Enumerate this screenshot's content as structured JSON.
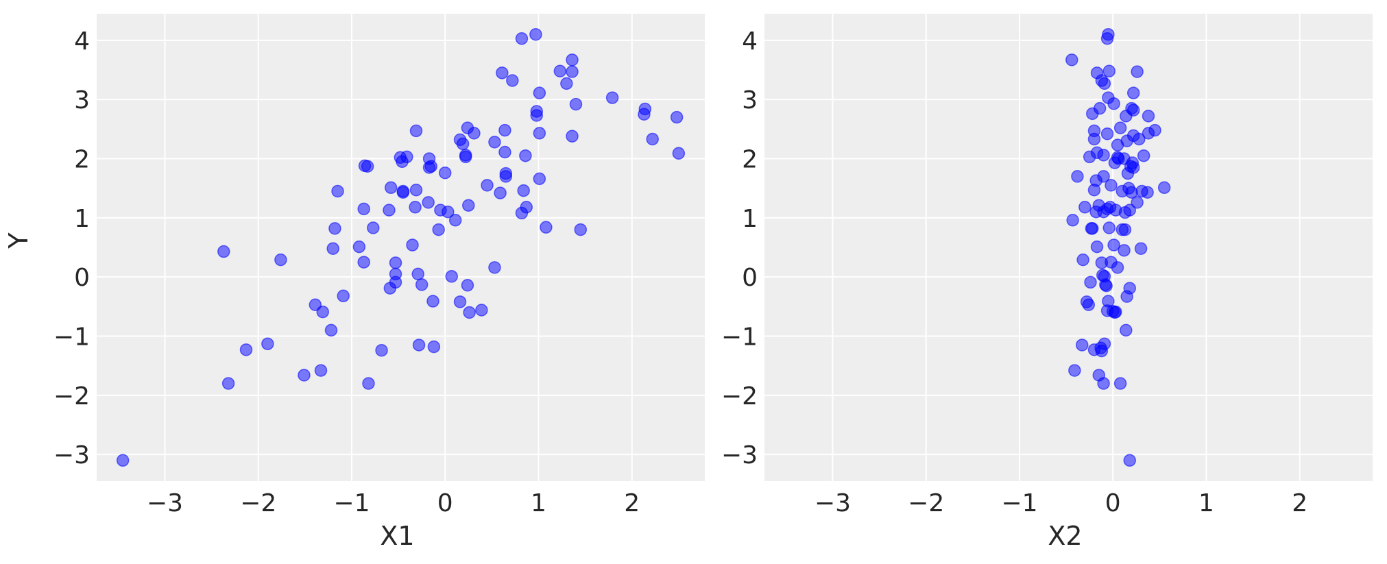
{
  "chart_data": [
    {
      "type": "scatter",
      "xlabel": "X1",
      "ylabel": "Y",
      "xlim": [
        -3.73,
        2.78
      ],
      "ylim": [
        -3.45,
        4.45
      ],
      "xticks": [
        -3,
        -2,
        -1,
        0,
        1,
        2
      ],
      "yticks": [
        -3,
        -2,
        -1,
        0,
        1,
        2,
        3,
        4
      ],
      "grid": true,
      "point_color": "#0000ff",
      "background": "#eeeeee",
      "points": [
        [
          -3.45,
          -3.1
        ],
        [
          -2.37,
          0.43
        ],
        [
          -2.32,
          -1.8
        ],
        [
          -2.13,
          -1.23
        ],
        [
          -1.9,
          -1.13
        ],
        [
          -1.76,
          0.29
        ],
        [
          -1.51,
          -1.66
        ],
        [
          -1.39,
          -0.47
        ],
        [
          -1.31,
          -0.59
        ],
        [
          -1.33,
          -1.58
        ],
        [
          -1.22,
          -0.9
        ],
        [
          -1.2,
          0.48
        ],
        [
          -1.18,
          0.82
        ],
        [
          -1.15,
          1.45
        ],
        [
          -1.09,
          -0.32
        ],
        [
          -0.92,
          0.51
        ],
        [
          -0.87,
          0.25
        ],
        [
          -0.87,
          1.15
        ],
        [
          -0.86,
          1.88
        ],
        [
          -0.83,
          1.87
        ],
        [
          -0.82,
          -1.8
        ],
        [
          -0.77,
          0.83
        ],
        [
          -0.68,
          -1.24
        ],
        [
          -0.6,
          1.13
        ],
        [
          -0.58,
          1.51
        ],
        [
          -0.59,
          -0.19
        ],
        [
          -0.53,
          0.24
        ],
        [
          -0.53,
          0.05
        ],
        [
          -0.53,
          -0.09
        ],
        [
          -0.48,
          2.02
        ],
        [
          -0.46,
          1.95
        ],
        [
          -0.45,
          1.45
        ],
        [
          -0.45,
          1.43
        ],
        [
          -0.41,
          2.03
        ],
        [
          -0.35,
          0.54
        ],
        [
          -0.32,
          1.18
        ],
        [
          -0.31,
          1.47
        ],
        [
          -0.31,
          2.47
        ],
        [
          -0.29,
          0.05
        ],
        [
          -0.28,
          -1.15
        ],
        [
          -0.25,
          -0.13
        ],
        [
          -0.18,
          1.26
        ],
        [
          -0.17,
          2.0
        ],
        [
          -0.17,
          1.85
        ],
        [
          -0.15,
          1.87
        ],
        [
          -0.13,
          -0.41
        ],
        [
          -0.12,
          -1.18
        ],
        [
          -0.07,
          0.8
        ],
        [
          -0.05,
          1.13
        ],
        [
          0.0,
          1.76
        ],
        [
          0.03,
          1.1
        ],
        [
          0.07,
          0.01
        ],
        [
          0.11,
          0.96
        ],
        [
          0.16,
          -0.42
        ],
        [
          0.16,
          2.32
        ],
        [
          0.19,
          2.25
        ],
        [
          0.22,
          2.06
        ],
        [
          0.22,
          2.03
        ],
        [
          0.24,
          -0.14
        ],
        [
          0.24,
          2.52
        ],
        [
          0.25,
          1.21
        ],
        [
          0.26,
          -0.6
        ],
        [
          0.31,
          2.43
        ],
        [
          0.39,
          -0.56
        ],
        [
          0.45,
          1.55
        ],
        [
          0.53,
          2.28
        ],
        [
          0.53,
          0.16
        ],
        [
          0.59,
          1.42
        ],
        [
          0.61,
          3.45
        ],
        [
          0.64,
          2.48
        ],
        [
          0.64,
          2.11
        ],
        [
          0.65,
          1.75
        ],
        [
          0.65,
          1.7
        ],
        [
          0.72,
          3.32
        ],
        [
          0.82,
          4.03
        ],
        [
          0.82,
          1.08
        ],
        [
          0.84,
          1.46
        ],
        [
          0.86,
          2.05
        ],
        [
          0.87,
          1.18
        ],
        [
          0.97,
          4.1
        ],
        [
          0.98,
          2.8
        ],
        [
          0.98,
          2.73
        ],
        [
          1.01,
          3.11
        ],
        [
          1.01,
          2.43
        ],
        [
          1.01,
          1.66
        ],
        [
          1.08,
          0.84
        ],
        [
          1.23,
          3.48
        ],
        [
          1.3,
          3.27
        ],
        [
          1.36,
          3.67
        ],
        [
          1.36,
          3.47
        ],
        [
          1.36,
          2.38
        ],
        [
          1.4,
          2.92
        ],
        [
          1.45,
          0.8
        ],
        [
          1.79,
          3.03
        ],
        [
          2.13,
          2.75
        ],
        [
          2.14,
          2.84
        ],
        [
          2.22,
          2.33
        ],
        [
          2.48,
          2.7
        ],
        [
          2.5,
          2.09
        ]
      ]
    },
    {
      "type": "scatter",
      "xlabel": "X2",
      "ylabel": "",
      "xlim": [
        -3.73,
        2.78
      ],
      "ylim": [
        -3.45,
        4.45
      ],
      "xticks": [
        -3,
        -2,
        -1,
        0,
        1,
        2
      ],
      "yticks": [
        -3,
        -2,
        -1,
        0,
        1,
        2,
        3,
        4
      ],
      "grid": true,
      "point_color": "#0000ff",
      "background": "#eeeeee",
      "points": [
        [
          0.18,
          -3.1
        ],
        [
          -0.41,
          -1.58
        ],
        [
          -0.33,
          -1.15
        ],
        [
          -0.2,
          -1.23
        ],
        [
          -0.15,
          -1.66
        ],
        [
          -0.13,
          -1.2
        ],
        [
          -0.09,
          -1.13
        ],
        [
          -0.1,
          -1.8
        ],
        [
          0.08,
          -1.8
        ],
        [
          -0.12,
          -1.25
        ],
        [
          0.14,
          -0.9
        ],
        [
          -0.28,
          -0.42
        ],
        [
          -0.26,
          -0.47
        ],
        [
          -0.05,
          -0.41
        ],
        [
          -0.06,
          -0.57
        ],
        [
          0.0,
          -0.58
        ],
        [
          0.02,
          -0.6
        ],
        [
          0.15,
          -0.33
        ],
        [
          0.18,
          -0.19
        ],
        [
          -0.24,
          -0.09
        ],
        [
          -0.08,
          -0.13
        ],
        [
          -0.07,
          -0.15
        ],
        [
          -0.11,
          0.03
        ],
        [
          -0.09,
          0.01
        ],
        [
          0.05,
          0.16
        ],
        [
          -0.32,
          0.29
        ],
        [
          -0.12,
          0.24
        ],
        [
          -0.02,
          0.25
        ],
        [
          0.3,
          0.48
        ],
        [
          -0.17,
          0.51
        ],
        [
          0.01,
          0.54
        ],
        [
          0.12,
          0.45
        ],
        [
          -0.43,
          0.96
        ],
        [
          -0.23,
          0.82
        ],
        [
          -0.22,
          0.82
        ],
        [
          -0.04,
          0.83
        ],
        [
          0.1,
          0.8
        ],
        [
          0.13,
          0.8
        ],
        [
          -0.3,
          1.18
        ],
        [
          -0.18,
          1.1
        ],
        [
          -0.15,
          1.21
        ],
        [
          -0.1,
          1.1
        ],
        [
          -0.03,
          1.18
        ],
        [
          0.03,
          1.13
        ],
        [
          0.13,
          1.09
        ],
        [
          0.18,
          1.13
        ],
        [
          0.26,
          1.26
        ],
        [
          -0.38,
          1.7
        ],
        [
          -0.2,
          1.47
        ],
        [
          -0.18,
          1.63
        ],
        [
          -0.1,
          1.7
        ],
        [
          -0.02,
          1.55
        ],
        [
          0.1,
          1.45
        ],
        [
          0.17,
          1.5
        ],
        [
          0.31,
          1.45
        ],
        [
          0.37,
          1.43
        ],
        [
          0.55,
          1.51
        ],
        [
          -0.25,
          2.03
        ],
        [
          -0.17,
          2.1
        ],
        [
          -0.1,
          2.06
        ],
        [
          0.02,
          1.93
        ],
        [
          0.05,
          2.02
        ],
        [
          0.12,
          2.0
        ],
        [
          0.16,
          1.75
        ],
        [
          0.19,
          1.87
        ],
        [
          0.21,
          1.93
        ],
        [
          0.22,
          1.85
        ],
        [
          0.33,
          2.05
        ],
        [
          -0.2,
          2.33
        ],
        [
          -0.2,
          2.47
        ],
        [
          -0.06,
          2.42
        ],
        [
          0.05,
          2.23
        ],
        [
          0.08,
          2.52
        ],
        [
          0.15,
          2.3
        ],
        [
          0.22,
          2.39
        ],
        [
          0.28,
          2.33
        ],
        [
          0.38,
          2.43
        ],
        [
          0.45,
          2.48
        ],
        [
          -0.22,
          2.76
        ],
        [
          -0.14,
          2.85
        ],
        [
          -0.05,
          3.03
        ],
        [
          0.01,
          2.93
        ],
        [
          0.14,
          2.72
        ],
        [
          0.2,
          2.85
        ],
        [
          0.22,
          2.82
        ],
        [
          0.38,
          2.72
        ],
        [
          -0.17,
          3.45
        ],
        [
          -0.12,
          3.32
        ],
        [
          -0.09,
          3.27
        ],
        [
          -0.04,
          3.48
        ],
        [
          0.22,
          3.11
        ],
        [
          0.26,
          3.47
        ],
        [
          -0.44,
          3.67
        ],
        [
          -0.06,
          4.03
        ],
        [
          -0.05,
          4.1
        ],
        [
          0.2,
          1.43
        ],
        [
          0.06,
          2.0
        ],
        [
          -0.06,
          1.15
        ],
        [
          0.03,
          -0.59
        ]
      ]
    }
  ]
}
